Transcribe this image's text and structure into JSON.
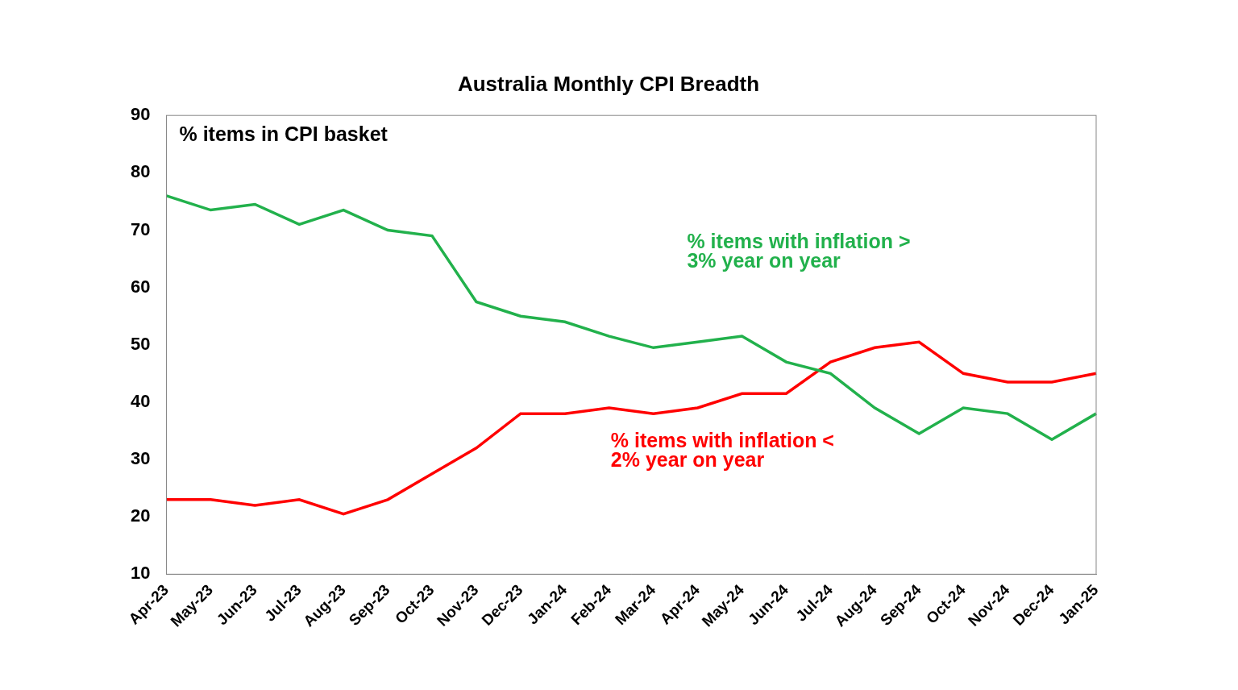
{
  "chart_data": {
    "type": "line",
    "title": "Australia Monthly CPI Breadth",
    "ylabel": "% items in CPI basket",
    "categories": [
      "Apr-23",
      "May-23",
      "Jun-23",
      "Jul-23",
      "Aug-23",
      "Sep-23",
      "Oct-23",
      "Nov-23",
      "Dec-23",
      "Jan-24",
      "Feb-24",
      "Mar-24",
      "Apr-24",
      "May-24",
      "Jun-24",
      "Jul-24",
      "Aug-24",
      "Sep-24",
      "Oct-24",
      "Nov-24",
      "Dec-24",
      "Jan-25"
    ],
    "series": [
      {
        "name": "% items with inflation > 3% year on year",
        "color": "#22b14c",
        "values": [
          76,
          73.5,
          74.5,
          71,
          73.5,
          70,
          69,
          57.5,
          55,
          54,
          51.5,
          49.5,
          50.5,
          51.5,
          47,
          45,
          39,
          34.5,
          39,
          38,
          33.5,
          38
        ]
      },
      {
        "name": "% items with inflation < 2% year on year",
        "color": "#ff0000",
        "values": [
          23,
          23,
          22,
          23,
          20.5,
          23,
          27.5,
          32,
          38,
          38,
          39,
          38,
          39,
          41.5,
          41.5,
          47,
          49.5,
          50.5,
          45,
          43.5,
          43.5,
          45
        ]
      }
    ],
    "annotations": [
      {
        "lines": [
          "% items with inflation >",
          "3% year on year"
        ],
        "color": "#22b14c"
      },
      {
        "lines": [
          "% items with inflation <",
          "2% year on year"
        ],
        "color": "#ff0000"
      }
    ],
    "ylim": [
      10,
      90
    ],
    "yticks": [
      10,
      20,
      30,
      40,
      50,
      60,
      70,
      80,
      90
    ],
    "grid": false
  }
}
